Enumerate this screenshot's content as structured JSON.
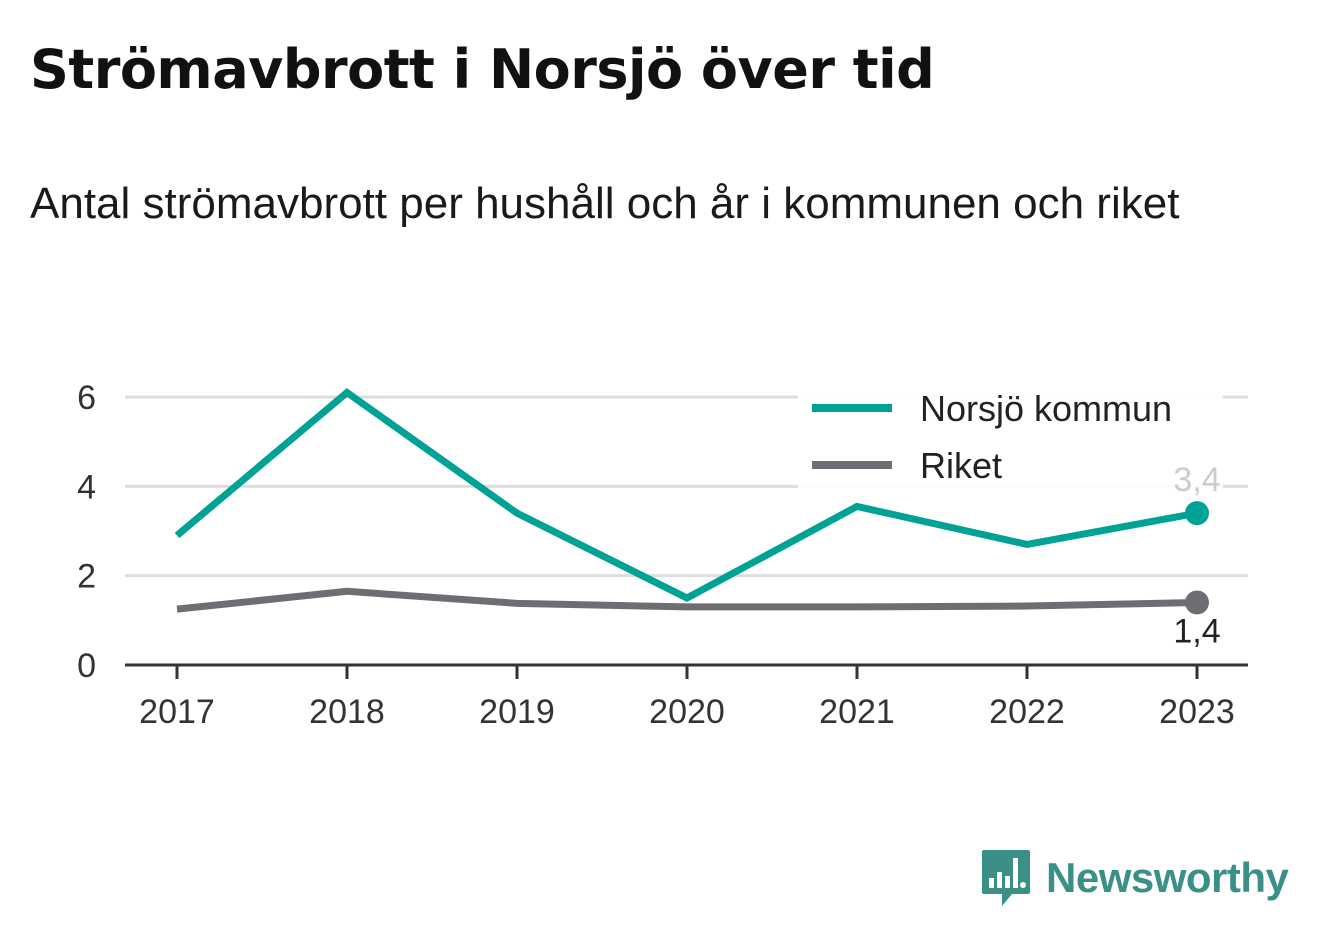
{
  "header": {
    "title": "Strömavbrott i Norsjö över tid",
    "subtitle": "Antal strömavbrott per hushåll och år i kommunen och riket"
  },
  "brand": {
    "name": "Newsworthy",
    "icon": "bar-chart-speech-bubble-icon",
    "color": "#3a8f87"
  },
  "chart_data": {
    "type": "line",
    "title": "Strömavbrott i Norsjö över tid",
    "subtitle": "Antal strömavbrott per hushåll och år i kommunen och riket",
    "x": [
      "2017",
      "2018",
      "2019",
      "2020",
      "2021",
      "2022",
      "2023"
    ],
    "y_ticks": [
      "0",
      "2",
      "4",
      "6"
    ],
    "ylim": [
      0,
      6
    ],
    "grid": true,
    "legend_placement": "top-right",
    "series": [
      {
        "name": "Norsjö kommun",
        "color": "#00a296",
        "values": [
          2.9,
          6.1,
          3.4,
          1.5,
          3.55,
          2.7,
          3.4
        ],
        "end_label": "3,4",
        "end_label_color": "#cccccc"
      },
      {
        "name": "Riket",
        "color": "#6e6d73",
        "values": [
          1.25,
          1.65,
          1.38,
          1.3,
          1.3,
          1.32,
          1.4
        ],
        "end_label": "1,4",
        "end_label_color": "#222222"
      }
    ]
  }
}
